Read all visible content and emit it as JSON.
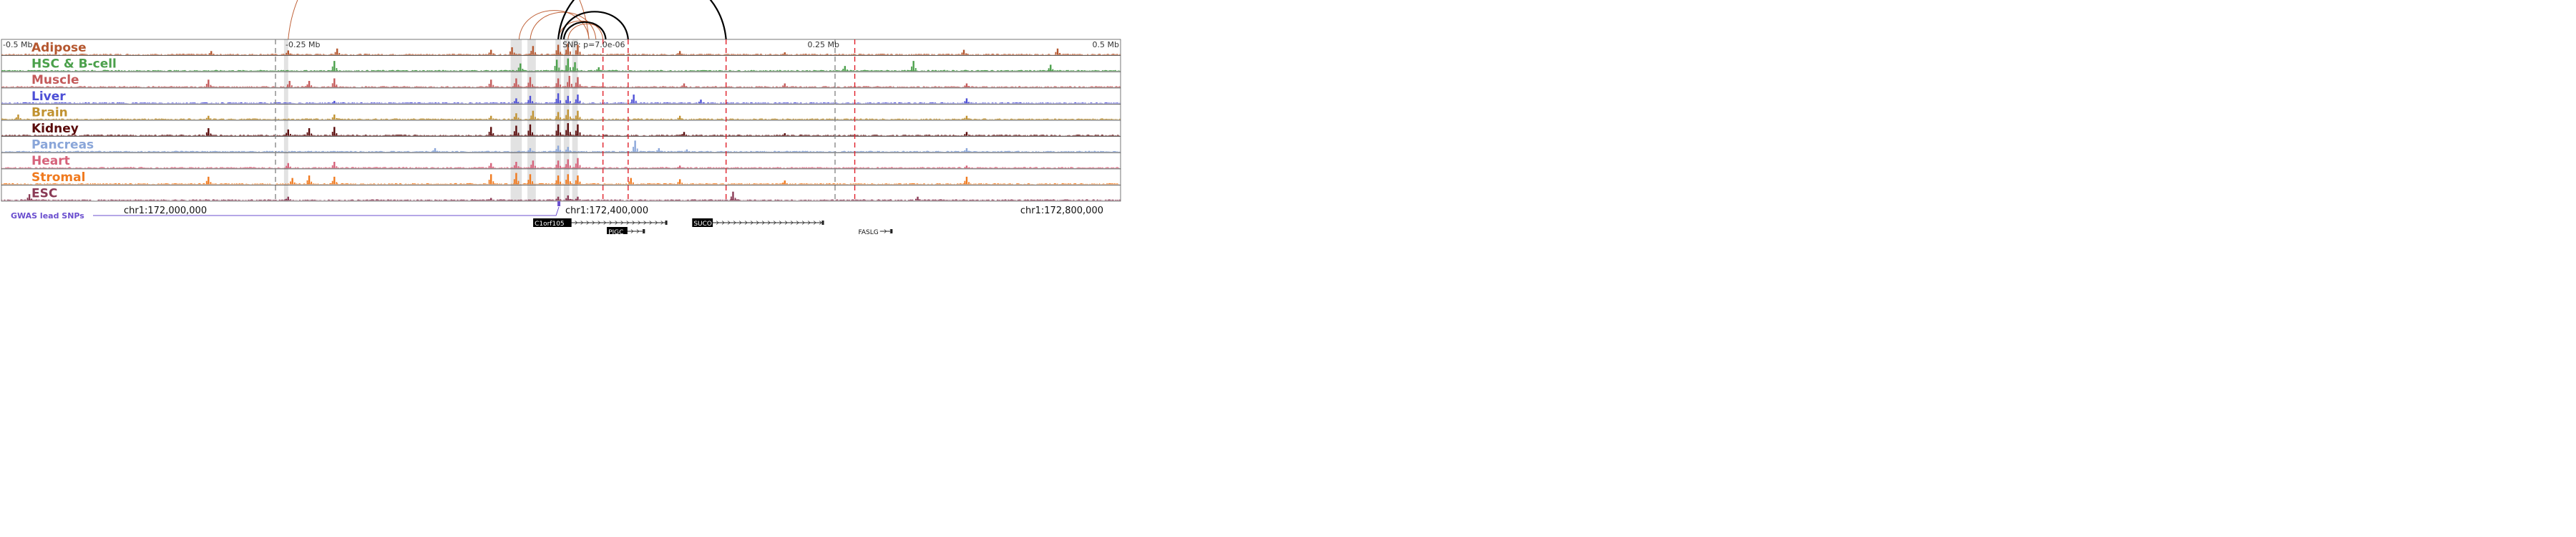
{
  "colors": {
    "red_dash": "#e0202a",
    "grey_dash": "#888888",
    "highlight": "#d8d8d8",
    "arc_orange": "#c0633a",
    "arc_black": "#000000",
    "gwas": "#6b4fcf",
    "frame": "#555555"
  },
  "chart_data": {
    "type": "area",
    "window_center": "chr1:172,400,000",
    "xlim": [
      172000000,
      172800000
    ],
    "scale_ticks": [
      {
        "label": "-0.5 Mb",
        "pos": 172000000
      },
      {
        "label": "-0.25 Mb",
        "pos": 172200000
      },
      {
        "label": "0.25 Mb",
        "pos": 172600000
      },
      {
        "label": "0.5 Mb",
        "pos": 172800000
      }
    ],
    "snp_label": "SNP: p=7.0e-06",
    "coord_ticks": [
      {
        "label": "chr1:172,000,000",
        "pos": 172000000
      },
      {
        "label": "chr1:172,400,000",
        "pos": 172400000
      },
      {
        "label": "chr1:172,800,000",
        "pos": 172800000
      }
    ],
    "tracks": [
      {
        "name": "Adipose",
        "color": "#b5572f",
        "peaks": [
          [
            172150000,
            0.3
          ],
          [
            172205000,
            0.35
          ],
          [
            172240000,
            0.5
          ],
          [
            172350000,
            0.4
          ],
          [
            172365000,
            0.6
          ],
          [
            172380000,
            0.7
          ],
          [
            172398000,
            0.8
          ],
          [
            172405000,
            0.9
          ],
          [
            172412000,
            0.8
          ],
          [
            172485000,
            0.3
          ],
          [
            172560000,
            0.2
          ],
          [
            172688000,
            0.4
          ],
          [
            172755000,
            0.5
          ]
        ]
      },
      {
        "name": "HSC & B-cell",
        "color": "#4ba04b",
        "peaks": [
          [
            172238000,
            0.8
          ],
          [
            172371000,
            0.6
          ],
          [
            172397000,
            0.9
          ],
          [
            172405000,
            1.0
          ],
          [
            172410000,
            0.7
          ],
          [
            172427000,
            0.3
          ],
          [
            172603000,
            0.4
          ],
          [
            172652000,
            0.8
          ],
          [
            172750000,
            0.5
          ]
        ]
      },
      {
        "name": "Muscle",
        "color": "#c45a5a",
        "peaks": [
          [
            172148000,
            0.6
          ],
          [
            172206000,
            0.5
          ],
          [
            172220000,
            0.5
          ],
          [
            172238000,
            0.7
          ],
          [
            172350000,
            0.6
          ],
          [
            172368000,
            0.7
          ],
          [
            172378000,
            0.8
          ],
          [
            172398000,
            0.7
          ],
          [
            172406000,
            0.9
          ],
          [
            172412000,
            0.8
          ],
          [
            172488000,
            0.3
          ],
          [
            172560000,
            0.3
          ],
          [
            172690000,
            0.3
          ]
        ]
      },
      {
        "name": "Liver",
        "color": "#4d4fd6",
        "peaks": [
          [
            172238000,
            0.2
          ],
          [
            172368000,
            0.4
          ],
          [
            172378000,
            0.6
          ],
          [
            172398000,
            0.8
          ],
          [
            172405000,
            0.6
          ],
          [
            172412000,
            0.7
          ],
          [
            172452000,
            0.7
          ],
          [
            172500000,
            0.3
          ],
          [
            172690000,
            0.4
          ]
        ]
      },
      {
        "name": "Brain",
        "color": "#c19230",
        "peaks": [
          [
            172012000,
            0.4
          ],
          [
            172148000,
            0.3
          ],
          [
            172238000,
            0.4
          ],
          [
            172350000,
            0.3
          ],
          [
            172368000,
            0.5
          ],
          [
            172380000,
            0.7
          ],
          [
            172398000,
            0.6
          ],
          [
            172405000,
            0.8
          ],
          [
            172412000,
            0.7
          ],
          [
            172485000,
            0.3
          ],
          [
            172690000,
            0.3
          ]
        ]
      },
      {
        "name": "Kidney",
        "color": "#5a0b0b",
        "peaks": [
          [
            172148000,
            0.6
          ],
          [
            172205000,
            0.5
          ],
          [
            172220000,
            0.6
          ],
          [
            172238000,
            0.7
          ],
          [
            172350000,
            0.7
          ],
          [
            172368000,
            0.8
          ],
          [
            172378000,
            0.9
          ],
          [
            172398000,
            0.9
          ],
          [
            172405000,
            1.0
          ],
          [
            172412000,
            0.9
          ],
          [
            172488000,
            0.3
          ],
          [
            172560000,
            0.2
          ],
          [
            172690000,
            0.3
          ]
        ]
      },
      {
        "name": "Pancreas",
        "color": "#8aa6d9",
        "peaks": [
          [
            172310000,
            0.3
          ],
          [
            172378000,
            0.3
          ],
          [
            172398000,
            0.5
          ],
          [
            172405000,
            0.4
          ],
          [
            172453000,
            0.9
          ],
          [
            172470000,
            0.3
          ],
          [
            172490000,
            0.2
          ],
          [
            172690000,
            0.3
          ]
        ]
      },
      {
        "name": "Heart",
        "color": "#d6627a",
        "peaks": [
          [
            172205000,
            0.4
          ],
          [
            172238000,
            0.5
          ],
          [
            172350000,
            0.4
          ],
          [
            172368000,
            0.5
          ],
          [
            172380000,
            0.6
          ],
          [
            172398000,
            0.6
          ],
          [
            172405000,
            0.7
          ],
          [
            172412000,
            0.8
          ],
          [
            172485000,
            0.2
          ],
          [
            172690000,
            0.2
          ]
        ]
      },
      {
        "name": "Stromal",
        "color": "#f07a1f",
        "peaks": [
          [
            172148000,
            0.6
          ],
          [
            172208000,
            0.5
          ],
          [
            172220000,
            0.7
          ],
          [
            172238000,
            0.6
          ],
          [
            172350000,
            0.8
          ],
          [
            172368000,
            0.9
          ],
          [
            172378000,
            0.8
          ],
          [
            172398000,
            0.7
          ],
          [
            172405000,
            0.8
          ],
          [
            172412000,
            0.7
          ],
          [
            172450000,
            0.5
          ],
          [
            172485000,
            0.4
          ],
          [
            172560000,
            0.3
          ],
          [
            172690000,
            0.6
          ]
        ]
      },
      {
        "name": "ESC",
        "color": "#8a3a55",
        "peaks": [
          [
            172020000,
            0.5
          ],
          [
            172205000,
            0.3
          ],
          [
            172350000,
            0.2
          ],
          [
            172398000,
            0.3
          ],
          [
            172405000,
            0.4
          ],
          [
            172412000,
            0.3
          ],
          [
            172523000,
            0.7
          ],
          [
            172655000,
            0.3
          ]
        ]
      }
    ],
    "gwas": {
      "label": "GWAS lead SNPs",
      "pos": 172398500
    },
    "red_lines": [
      172430000,
      172448000,
      172518000,
      172610000
    ],
    "grey_lines": [
      172200000,
      172600000
    ],
    "highlights": [
      [
        172202000,
        172205000
      ],
      [
        172364000,
        172372000
      ],
      [
        172376000,
        172382000
      ],
      [
        172396000,
        172400000
      ],
      [
        172402000,
        172406000
      ],
      [
        172408000,
        172412000
      ]
    ],
    "arcs_orange": [
      [
        172205000,
        172420000
      ],
      [
        172370000,
        172420000
      ],
      [
        172378000,
        172425000
      ],
      [
        172398000,
        172430000
      ],
      [
        172402000,
        172432000
      ],
      [
        172405000,
        172432000
      ]
    ],
    "arcs_black": [
      [
        172398000,
        172518000
      ],
      [
        172400000,
        172448000
      ],
      [
        172402000,
        172432000
      ]
    ],
    "genes": [
      {
        "name": "C1orf105",
        "start": 172407000,
        "end": 172476000,
        "row": 0
      },
      {
        "name": "PIGC",
        "start": 172447000,
        "end": 172460000,
        "row": 1
      },
      {
        "name": "SUCO",
        "start": 172508000,
        "end": 172588000,
        "row": 0
      },
      {
        "name": "FASLG",
        "start": 172628000,
        "end": 172637000,
        "row": 1
      }
    ]
  }
}
